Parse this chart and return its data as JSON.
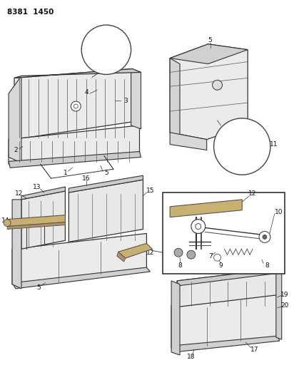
{
  "title": "8381 1450",
  "bg_color": "#ffffff",
  "lc": "#333333",
  "figsize": [
    4.12,
    5.33
  ],
  "dpi": 100
}
